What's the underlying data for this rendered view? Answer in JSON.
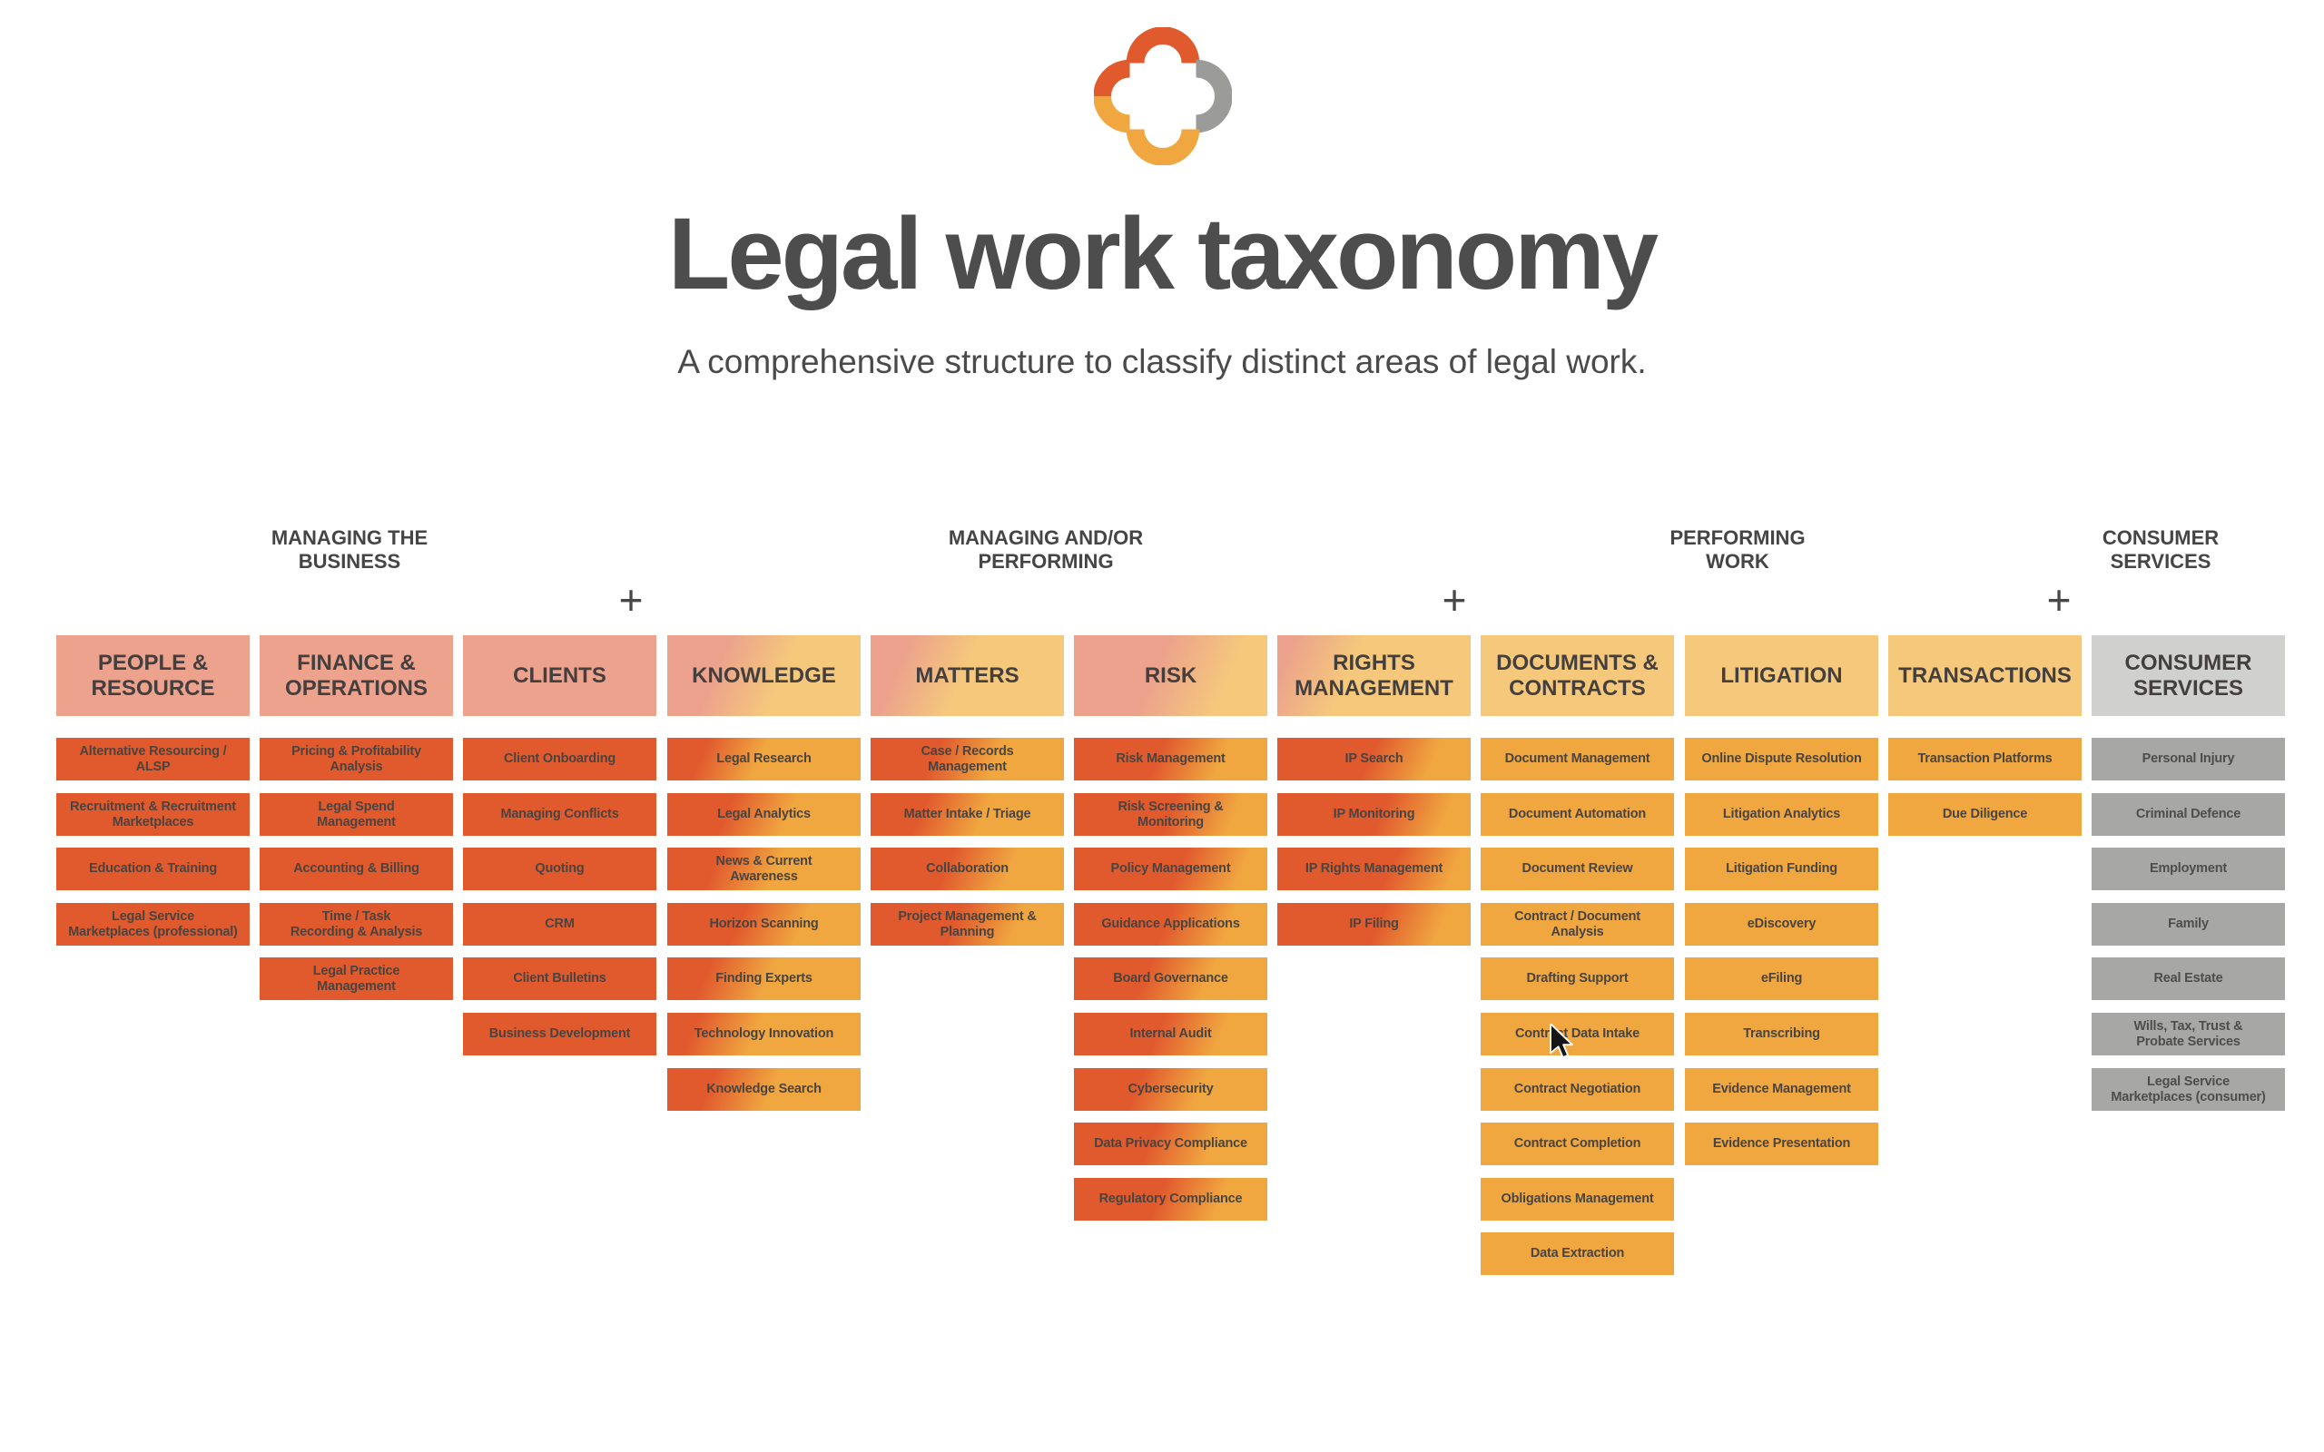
{
  "page": {
    "title": "Legal work taxonomy",
    "subtitle": "A comprehensive structure to classify distinct areas of legal work.",
    "plus": "+"
  },
  "icons": {
    "logo": "four-petal-cross-logo",
    "cursor": "arrow-cursor"
  },
  "groups": [
    {
      "label": "MANAGING THE\nBUSINESS"
    },
    {
      "label": "MANAGING AND/OR\nPERFORMING"
    },
    {
      "label": "PERFORMING\nWORK"
    },
    {
      "label": "CONSUMER\nSERVICES"
    }
  ],
  "columns": [
    {
      "id": "people-resource",
      "header": "PEOPLE &\nRESOURCE",
      "items": [
        "Alternative Resourcing /\nALSP",
        "Recruitment & Recruitment\nMarketplaces",
        "Education & Training",
        "Legal Service\nMarketplaces (professional)"
      ]
    },
    {
      "id": "finance-operations",
      "header": "FINANCE &\nOPERATIONS",
      "items": [
        "Pricing & Profitability\nAnalysis",
        "Legal Spend\nManagement",
        "Accounting & Billing",
        "Time / Task\nRecording & Analysis",
        "Legal Practice\nManagement"
      ]
    },
    {
      "id": "clients",
      "header": "CLIENTS",
      "items": [
        "Client Onboarding",
        "Managing Conflicts",
        "Quoting",
        "CRM",
        "Client Bulletins",
        "Business Development"
      ]
    },
    {
      "id": "knowledge",
      "header": "KNOWLEDGE",
      "items": [
        "Legal Research",
        "Legal Analytics",
        "News & Current\nAwareness",
        "Horizon Scanning",
        "Finding Experts",
        "Technology Innovation",
        "Knowledge Search"
      ]
    },
    {
      "id": "matters",
      "header": "MATTERS",
      "items": [
        "Case / Records\nManagement",
        "Matter Intake / Triage",
        "Collaboration",
        "Project Management &\nPlanning"
      ]
    },
    {
      "id": "risk",
      "header": "RISK",
      "items": [
        "Risk Management",
        "Risk Screening &\nMonitoring",
        "Policy Management",
        "Guidance Applications",
        "Board Governance",
        "Internal Audit",
        "Cybersecurity",
        "Data Privacy Compliance",
        "Regulatory Compliance"
      ]
    },
    {
      "id": "rights-management",
      "header": "RIGHTS\nMANAGEMENT",
      "items": [
        "IP Search",
        "IP Monitoring",
        "IP Rights Management",
        "IP Filing"
      ]
    },
    {
      "id": "documents-contracts",
      "header": "DOCUMENTS &\nCONTRACTS",
      "items": [
        "Document Management",
        "Document Automation",
        "Document Review",
        "Contract / Document\nAnalysis",
        "Drafting Support",
        "Contract Data Intake",
        "Contract Negotiation",
        "Contract Completion",
        "Obligations Management",
        "Data Extraction"
      ]
    },
    {
      "id": "litigation",
      "header": "LITIGATION",
      "items": [
        "Online Dispute Resolution",
        "Litigation Analytics",
        "Litigation Funding",
        "eDiscovery",
        "eFiling",
        "Transcribing",
        "Evidence Management",
        "Evidence Presentation"
      ]
    },
    {
      "id": "transactions",
      "header": "TRANSACTIONS",
      "items": [
        "Transaction Platforms",
        "Due Diligence"
      ]
    },
    {
      "id": "consumer-services",
      "header": "CONSUMER\nSERVICES",
      "items": [
        "Personal Injury",
        "Criminal Defence",
        "Employment",
        "Family",
        "Real Estate",
        "Wills, Tax, Trust &\nProbate Services",
        "Legal Service\nMarketplaces (consumer)"
      ]
    }
  ],
  "cursor": {
    "hover_target": "Contract Data Intake"
  },
  "colors": {
    "salmon": "#ECA28C",
    "red": "#E15A2E",
    "amber": "#F0A740",
    "light_amber": "#F5C87C",
    "gray_header": "#D0D0CE",
    "gray_cell": "#A7A7A5",
    "logo_gray": "#9B9B99",
    "title_text": "#4D4D4D",
    "dark_text": "#4A4A4A"
  }
}
